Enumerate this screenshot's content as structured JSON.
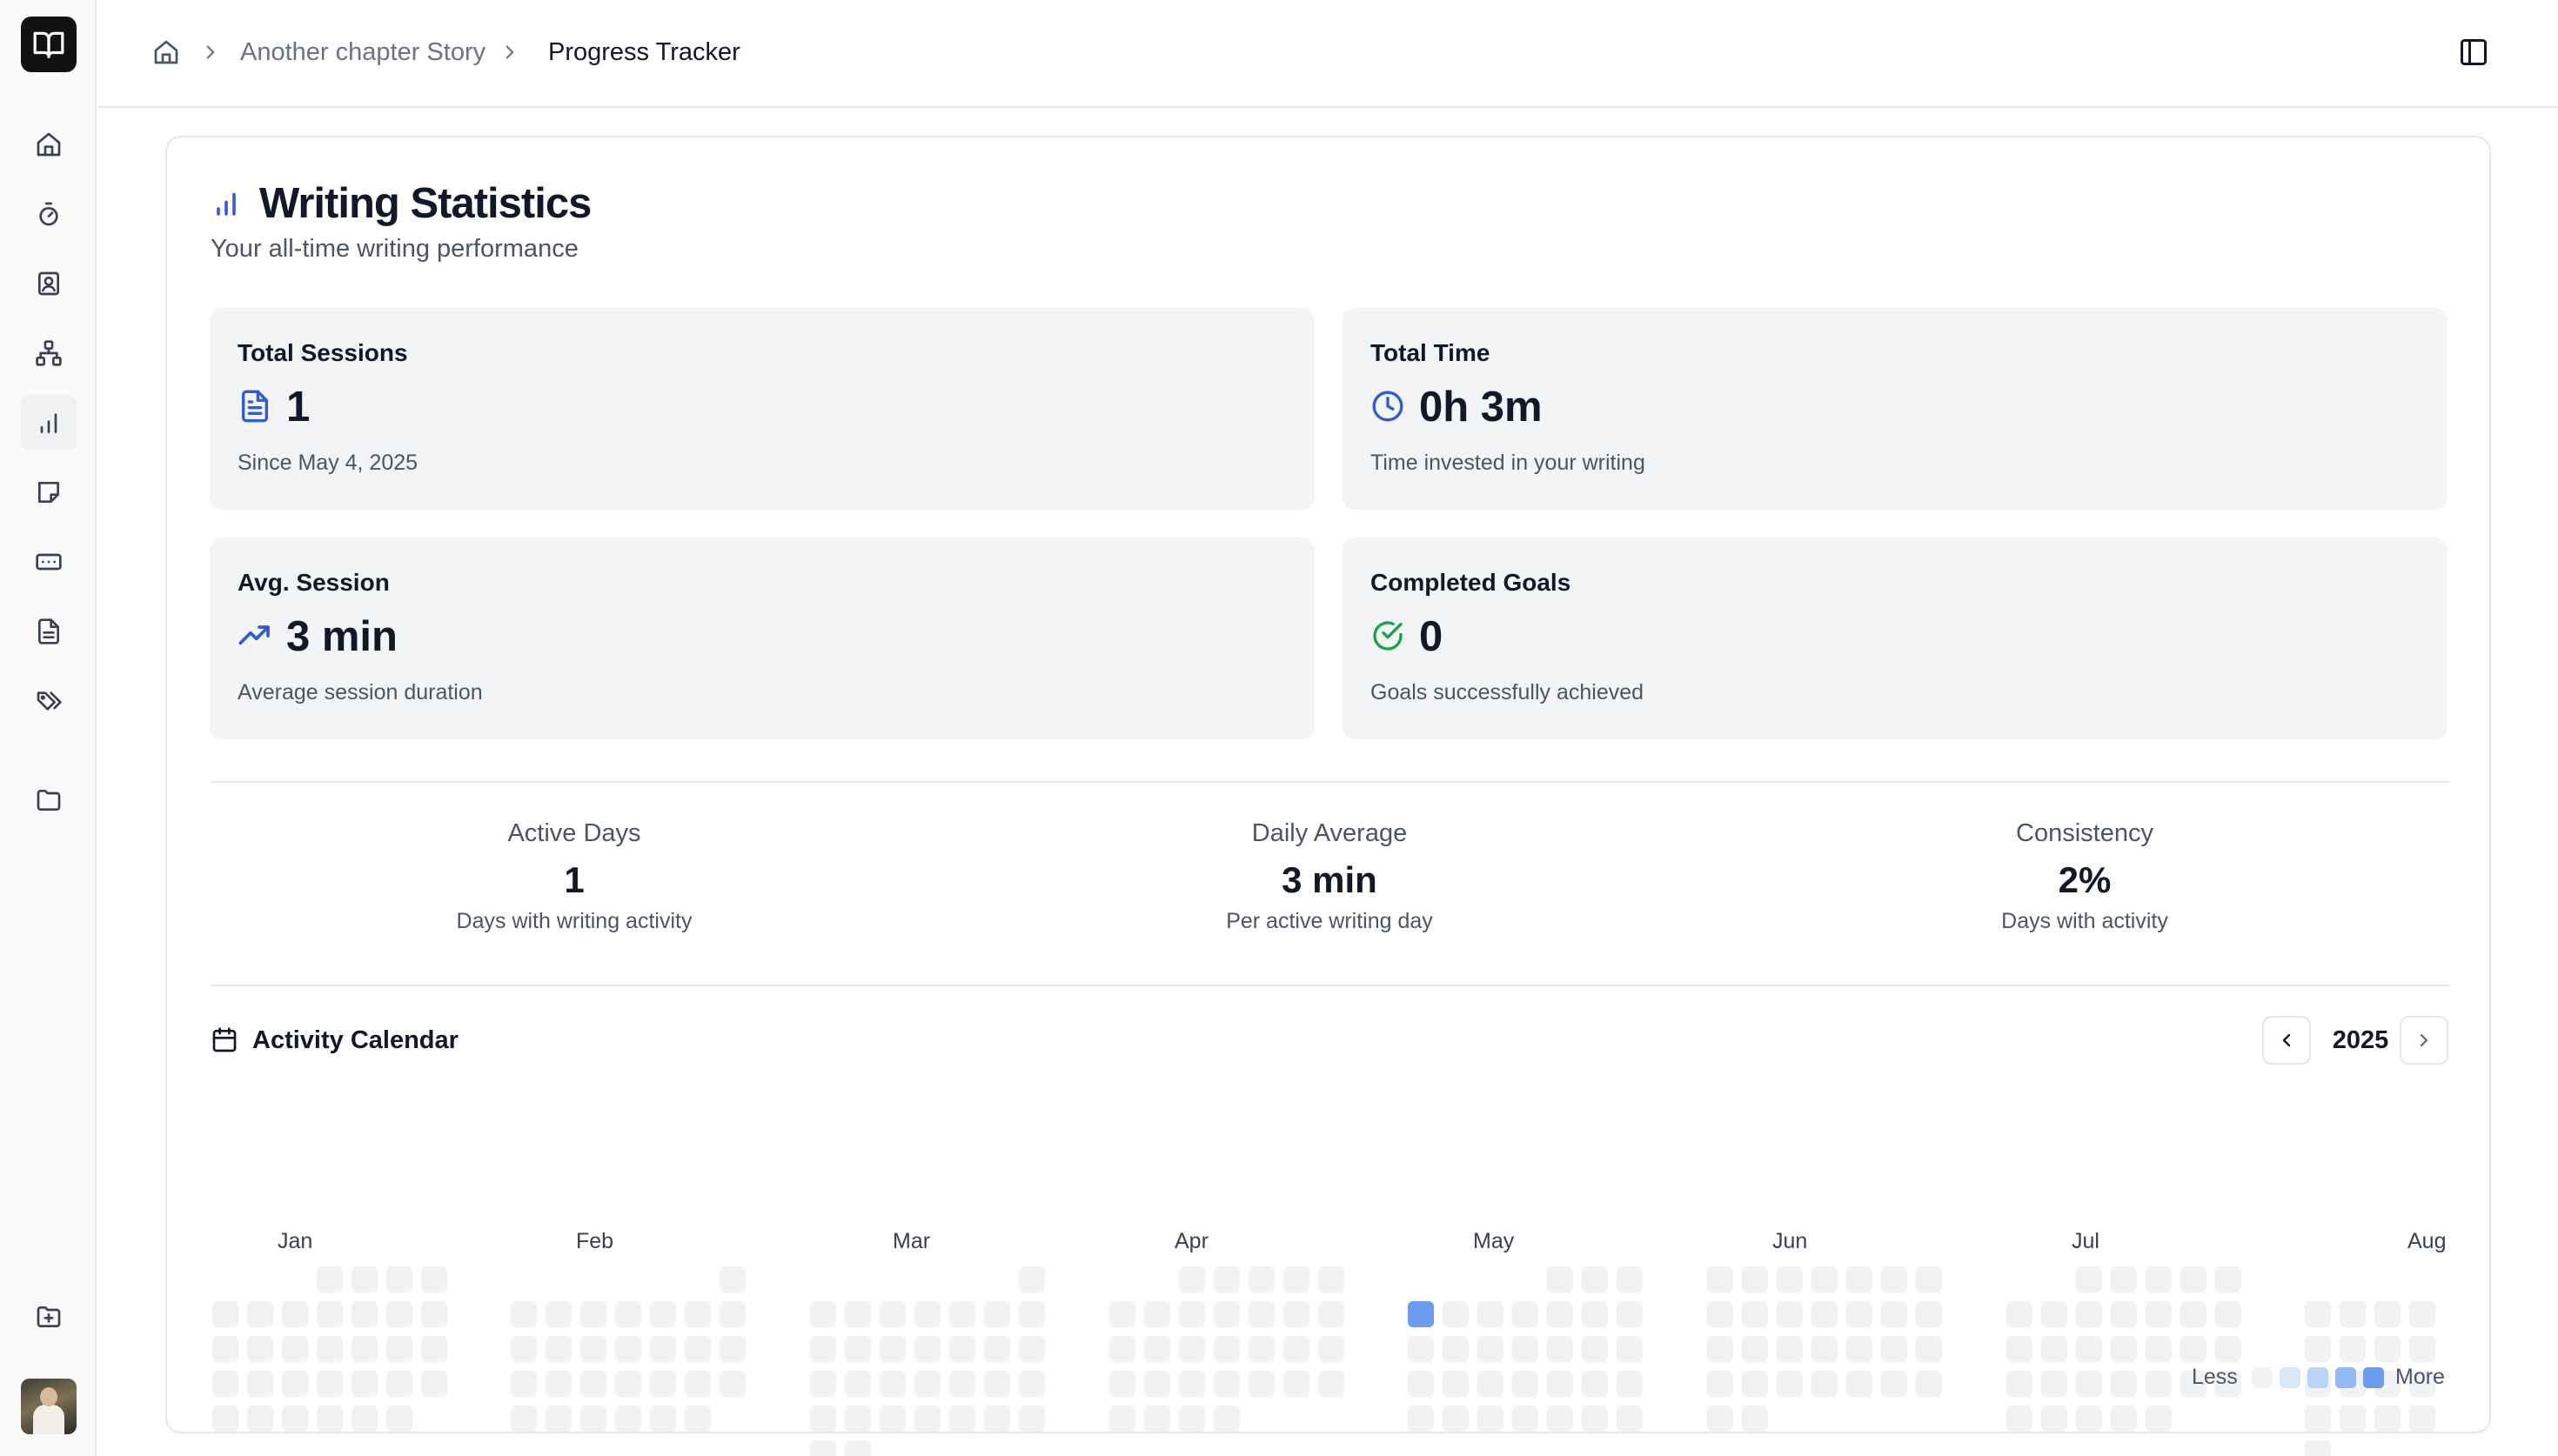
{
  "breadcrumb": {
    "items": [
      "Another chapter Story",
      "Progress Tracker"
    ]
  },
  "statistics": {
    "title": "Writing Statistics",
    "subtitle": "Your all-time writing performance",
    "cards": [
      {
        "label": "Total Sessions",
        "value": "1",
        "desc": "Since May 4, 2025",
        "icon": "document-icon"
      },
      {
        "label": "Total Time",
        "value": "0h 3m",
        "desc": "Time invested in your writing",
        "icon": "clock-icon"
      },
      {
        "label": "Avg. Session",
        "value": "3 min",
        "desc": "Average session duration",
        "icon": "trending-up-icon"
      },
      {
        "label": "Completed Goals",
        "value": "0",
        "desc": "Goals successfully achieved",
        "icon": "check-circle-icon"
      }
    ],
    "metrics": [
      {
        "label": "Active Days",
        "value": "1",
        "desc": "Days with writing activity"
      },
      {
        "label": "Daily Average",
        "value": "3 min",
        "desc": "Per active writing day"
      },
      {
        "label": "Consistency",
        "value": "2%",
        "desc": "Days with activity"
      }
    ]
  },
  "calendar": {
    "title": "Activity Calendar",
    "year": "2025",
    "months": [
      "Jan",
      "Feb",
      "Mar",
      "Apr",
      "May",
      "Jun",
      "Jul",
      "Aug"
    ],
    "active_dates": [
      "2025-05-04"
    ],
    "legend": {
      "less": "Less",
      "more": "More"
    },
    "colors": {
      "empty": "#f1f2f4",
      "levels": [
        "#f1f2f4",
        "#dbe7fb",
        "#bcd3f8",
        "#94b8f3",
        "#6c9cef"
      ]
    }
  },
  "colors": {
    "accent": "#2f5bd6",
    "success": "#16a34a"
  }
}
